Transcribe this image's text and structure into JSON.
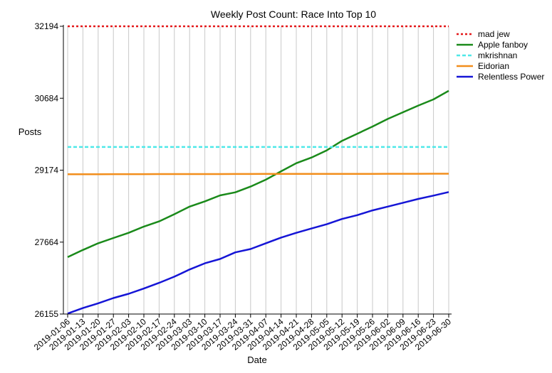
{
  "chart_data": {
    "type": "line",
    "title": "Weekly Post Count: Race Into Top 10",
    "xlabel": "Date",
    "ylabel": "Posts",
    "ylim": [
      26155,
      32194
    ],
    "yticks": [
      "26155",
      "27664",
      "29174",
      "30684",
      "32194"
    ],
    "grid": "vertical",
    "legend_position": "top-right",
    "categories": [
      "2019-01-06",
      "2019-01-13",
      "2019-01-20",
      "2019-01-27",
      "2019-02-03",
      "2019-02-10",
      "2019-02-17",
      "2019-02-24",
      "2019-03-03",
      "2019-03-10",
      "2019-03-17",
      "2019-03-24",
      "2019-03-31",
      "2019-04-07",
      "2019-04-14",
      "2019-04-21",
      "2019-04-28",
      "2019-05-05",
      "2019-05-12",
      "2019-05-19",
      "2019-05-26",
      "2019-06-02",
      "2019-06-09",
      "2019-06-16",
      "2019-06-23",
      "2019-06-30"
    ],
    "series": [
      {
        "name": "mad jew",
        "color": "#e41a1c",
        "style": "dotted",
        "values": [
          32194,
          32194,
          32194,
          32194,
          32194,
          32194,
          32194,
          32194,
          32194,
          32194,
          32194,
          32194,
          32194,
          32194,
          32194,
          32194,
          32194,
          32194,
          32194,
          32194,
          32194,
          32194,
          32194,
          32194,
          32194,
          32194
        ]
      },
      {
        "name": "Apple fanboy",
        "color": "#1a8a1a",
        "style": "solid",
        "values": [
          27350,
          27500,
          27640,
          27750,
          27860,
          27990,
          28100,
          28250,
          28410,
          28520,
          28645,
          28710,
          28830,
          28975,
          29150,
          29320,
          29440,
          29590,
          29790,
          29940,
          30090,
          30250,
          30390,
          30530,
          30660,
          30840
        ]
      },
      {
        "name": "mkrishnan",
        "color": "#4fe8e8",
        "style": "dashed",
        "values": [
          29660,
          29660,
          29660,
          29660,
          29660,
          29660,
          29660,
          29660,
          29660,
          29660,
          29660,
          29660,
          29660,
          29660,
          29660,
          29660,
          29660,
          29660,
          29660,
          29660,
          29660,
          29660,
          29660,
          29660,
          29660,
          29660
        ]
      },
      {
        "name": "Eidorian",
        "color": "#f28e1c",
        "style": "solid",
        "values": [
          29090,
          29090,
          29090,
          29091,
          29091,
          29091,
          29092,
          29092,
          29092,
          29093,
          29093,
          29094,
          29094,
          29095,
          29095,
          29096,
          29096,
          29096,
          29097,
          29097,
          29097,
          29098,
          29099,
          29099,
          29100,
          29100
        ]
      },
      {
        "name": "Relentless Power",
        "color": "#1515d6",
        "style": "solid",
        "values": [
          26165,
          26280,
          26380,
          26490,
          26580,
          26690,
          26810,
          26940,
          27090,
          27220,
          27310,
          27450,
          27520,
          27640,
          27760,
          27860,
          27950,
          28040,
          28150,
          28230,
          28330,
          28410,
          28490,
          28570,
          28640,
          28715
        ]
      }
    ]
  }
}
